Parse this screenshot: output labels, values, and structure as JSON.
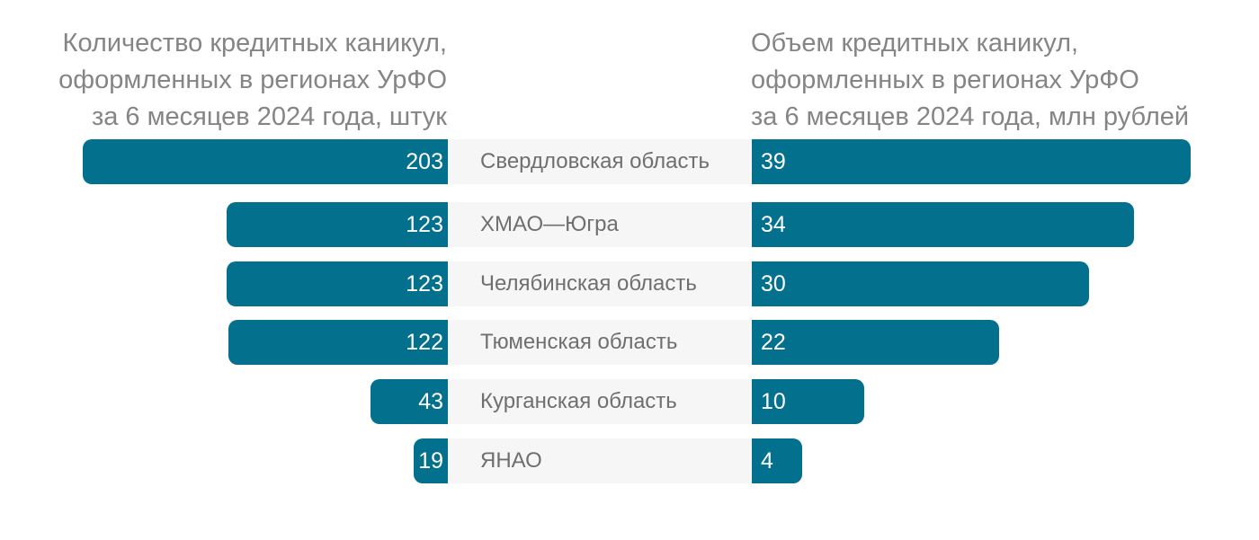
{
  "chart_data": {
    "type": "bar",
    "left_title": "Количество кредитных каникул,\nоформленных в регионах УрФО\nза 6 месяцев 2024 года, штук",
    "right_title": "Объем кредитных каникул,\nоформленных в регионах УрФО\nза 6 месяцев 2024 года, млн рублей",
    "categories": [
      "Свердловская область",
      "ХМАО—Югра",
      "Челябинская область",
      "Тюменская область",
      "Курганская область",
      "ЯНАО"
    ],
    "series": [
      {
        "name": "Количество кредитных каникул, штук",
        "values": [
          203,
          123,
          123,
          122,
          43,
          19
        ]
      },
      {
        "name": "Объем кредитных каникул, млн рублей",
        "values": [
          39,
          34,
          30,
          22,
          10,
          4
        ]
      }
    ],
    "colors": {
      "bar": "#03708d",
      "label_band": "#f6f6f6",
      "value_text": "#ffffff",
      "category_text": "#6f6f6f",
      "title_text": "#858585"
    }
  }
}
